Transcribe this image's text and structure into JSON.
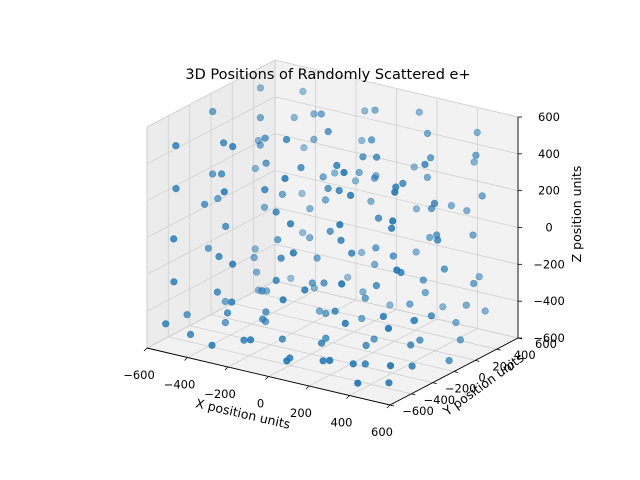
{
  "chart_data": {
    "type": "scatter",
    "title": "3D Positions of Randomly Scattered e+",
    "xlabel": "X position units",
    "ylabel": "Y position units",
    "zlabel": "Z position units",
    "xlim": [
      -600,
      600
    ],
    "ylim": [
      -600,
      600
    ],
    "zlim": [
      -600,
      600
    ],
    "xticks": [
      -600,
      -400,
      -200,
      0,
      200,
      400,
      600
    ],
    "yticks": [
      -600,
      -400,
      -200,
      0,
      200,
      400,
      600
    ],
    "zticks": [
      -600,
      -400,
      -200,
      0,
      200,
      400,
      600
    ],
    "xtick_labels": [
      "−600",
      "−400",
      "−200",
      "0",
      "200",
      "400",
      "600"
    ],
    "ytick_labels": [
      "−600",
      "−400",
      "−200",
      "0",
      "200",
      "400",
      "600"
    ],
    "ztick_labels": [
      "−600",
      "−400",
      "−200",
      "0",
      "200",
      "400",
      "600"
    ],
    "grid": true,
    "marker_color": "#1f77b4",
    "pane_color": "#f2f2f2",
    "grid_color": "#d0d0d0",
    "series": [
      {
        "points": [
          [
            -550,
            -520,
            -480
          ],
          [
            -300,
            -560,
            -520
          ],
          [
            -120,
            -540,
            -450
          ],
          [
            80,
            -580,
            -500
          ],
          [
            260,
            -520,
            -470
          ],
          [
            420,
            -560,
            -540
          ],
          [
            550,
            -500,
            -430
          ],
          [
            -480,
            -420,
            -550
          ],
          [
            -200,
            -450,
            -500
          ],
          [
            0,
            -400,
            -560
          ],
          [
            180,
            -430,
            -520
          ],
          [
            350,
            -470,
            -480
          ],
          [
            500,
            -420,
            -560
          ],
          [
            -560,
            -300,
            -500
          ],
          [
            -350,
            -320,
            -430
          ],
          [
            -100,
            -280,
            -520
          ],
          [
            120,
            -330,
            -470
          ],
          [
            320,
            -300,
            -540
          ],
          [
            530,
            -260,
            -510
          ],
          [
            -450,
            -150,
            -560
          ],
          [
            -250,
            -180,
            -480
          ],
          [
            30,
            -120,
            -530
          ],
          [
            250,
            -160,
            -500
          ],
          [
            460,
            -140,
            -450
          ],
          [
            -540,
            20,
            -520
          ],
          [
            -320,
            -20,
            -560
          ],
          [
            -60,
            50,
            -470
          ],
          [
            200,
            10,
            -530
          ],
          [
            400,
            60,
            -500
          ],
          [
            560,
            30,
            -560
          ],
          [
            -420,
            180,
            -480
          ],
          [
            -180,
            220,
            -540
          ],
          [
            60,
            160,
            -500
          ],
          [
            300,
            200,
            -460
          ],
          [
            500,
            250,
            -530
          ],
          [
            -550,
            350,
            -560
          ],
          [
            -300,
            400,
            -500
          ],
          [
            -50,
            380,
            -450
          ],
          [
            180,
            420,
            -560
          ],
          [
            420,
            360,
            -490
          ],
          [
            -480,
            520,
            -530
          ],
          [
            -220,
            560,
            -470
          ],
          [
            20,
            500,
            -540
          ],
          [
            260,
            540,
            -500
          ],
          [
            480,
            520,
            -460
          ],
          [
            -520,
            -500,
            -250
          ],
          [
            -250,
            -470,
            -300
          ],
          [
            30,
            -520,
            -200
          ],
          [
            300,
            -450,
            -280
          ],
          [
            540,
            -500,
            -230
          ],
          [
            -400,
            -320,
            -330
          ],
          [
            -120,
            -300,
            -200
          ],
          [
            150,
            -260,
            -310
          ],
          [
            420,
            -320,
            -250
          ],
          [
            -560,
            -100,
            -200
          ],
          [
            -280,
            -130,
            -350
          ],
          [
            0,
            -80,
            -250
          ],
          [
            280,
            -120,
            -180
          ],
          [
            520,
            -60,
            -300
          ],
          [
            -440,
            100,
            -280
          ],
          [
            -150,
            140,
            -220
          ],
          [
            120,
            80,
            -350
          ],
          [
            380,
            130,
            -200
          ],
          [
            -540,
            300,
            -320
          ],
          [
            -260,
            280,
            -180
          ],
          [
            40,
            320,
            -260
          ],
          [
            300,
            300,
            -340
          ],
          [
            550,
            280,
            -220
          ],
          [
            -400,
            480,
            -250
          ],
          [
            -130,
            520,
            -300
          ],
          [
            160,
            480,
            -210
          ],
          [
            440,
            540,
            -290
          ],
          [
            -500,
            -540,
            0
          ],
          [
            -230,
            -500,
            -80
          ],
          [
            60,
            -480,
            50
          ],
          [
            330,
            -540,
            -30
          ],
          [
            560,
            -460,
            80
          ],
          [
            -380,
            -280,
            20
          ],
          [
            -80,
            -330,
            -60
          ],
          [
            200,
            -300,
            100
          ],
          [
            470,
            -250,
            -20
          ],
          [
            -540,
            -50,
            60
          ],
          [
            -260,
            -20,
            -100
          ],
          [
            20,
            -60,
            30
          ],
          [
            300,
            0,
            -50
          ],
          [
            540,
            -40,
            110
          ],
          [
            -420,
            160,
            -20
          ],
          [
            -140,
            200,
            80
          ],
          [
            140,
            140,
            -90
          ],
          [
            420,
            180,
            40
          ],
          [
            -560,
            340,
            100
          ],
          [
            -280,
            320,
            -40
          ],
          [
            0,
            360,
            60
          ],
          [
            280,
            380,
            -70
          ],
          [
            520,
            330,
            20
          ],
          [
            -430,
            530,
            -60
          ],
          [
            -150,
            500,
            90
          ],
          [
            120,
            560,
            -10
          ],
          [
            400,
            500,
            70
          ],
          [
            -520,
            -480,
            250
          ],
          [
            -250,
            -540,
            320
          ],
          [
            40,
            -470,
            200
          ],
          [
            310,
            -520,
            280
          ],
          [
            550,
            -480,
            350
          ],
          [
            -400,
            -280,
            300
          ],
          [
            -110,
            -320,
            180
          ],
          [
            170,
            -260,
            350
          ],
          [
            450,
            -300,
            230
          ],
          [
            -550,
            -80,
            200
          ],
          [
            -270,
            -110,
            340
          ],
          [
            10,
            -60,
            260
          ],
          [
            280,
            -100,
            180
          ],
          [
            530,
            -50,
            310
          ],
          [
            -420,
            120,
            330
          ],
          [
            -130,
            160,
            220
          ],
          [
            150,
            110,
            300
          ],
          [
            410,
            150,
            190
          ],
          [
            -540,
            330,
            260
          ],
          [
            -250,
            300,
            350
          ],
          [
            30,
            350,
            210
          ],
          [
            300,
            320,
            280
          ],
          [
            560,
            340,
            240
          ],
          [
            -410,
            510,
            200
          ],
          [
            -140,
            540,
            300
          ],
          [
            140,
            500,
            240
          ],
          [
            420,
            530,
            330
          ],
          [
            -500,
            -520,
            500
          ],
          [
            -240,
            -480,
            550
          ],
          [
            50,
            -540,
            470
          ],
          [
            320,
            -500,
            560
          ],
          [
            550,
            -460,
            500
          ],
          [
            -380,
            -300,
            480
          ],
          [
            -90,
            -260,
            560
          ],
          [
            190,
            -320,
            510
          ],
          [
            460,
            -280,
            450
          ],
          [
            -560,
            -60,
            530
          ],
          [
            -280,
            -100,
            470
          ],
          [
            0,
            -40,
            560
          ],
          [
            260,
            -80,
            500
          ],
          [
            520,
            -120,
            540
          ],
          [
            -430,
            140,
            470
          ],
          [
            -150,
            180,
            550
          ],
          [
            130,
            120,
            500
          ],
          [
            400,
            160,
            460
          ],
          [
            -540,
            350,
            540
          ],
          [
            -260,
            320,
            480
          ],
          [
            20,
            360,
            560
          ],
          [
            290,
            340,
            510
          ],
          [
            550,
            300,
            470
          ],
          [
            -420,
            520,
            500
          ],
          [
            -130,
            550,
            460
          ],
          [
            160,
            510,
            540
          ],
          [
            430,
            540,
            490
          ],
          [
            -350,
            -400,
            -100
          ],
          [
            -50,
            -200,
            400
          ],
          [
            250,
            250,
            -400
          ],
          [
            -200,
            400,
            150
          ],
          [
            400,
            -100,
            400
          ],
          [
            -480,
            200,
            -400
          ],
          [
            100,
            -450,
            -150
          ],
          [
            350,
            450,
            100
          ],
          [
            -100,
            0,
            -300
          ],
          [
            200,
            -200,
            0
          ],
          [
            -300,
            100,
            100
          ],
          [
            500,
            100,
            -100
          ],
          [
            -500,
            -250,
            100
          ],
          [
            0,
            250,
            250
          ],
          [
            300,
            -400,
            400
          ],
          [
            -150,
            -350,
            300
          ],
          [
            450,
            400,
            -400
          ],
          [
            -400,
            400,
            400
          ],
          [
            150,
            0,
            450
          ],
          [
            -250,
            -150,
            -450
          ]
        ]
      }
    ]
  }
}
